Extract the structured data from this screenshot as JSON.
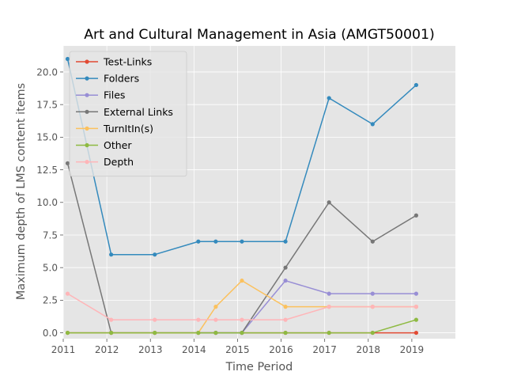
{
  "chart_data": {
    "type": "line",
    "title": "Art and Cultural Management in Asia (AMGT50001)",
    "xlabel": "Time Period",
    "ylabel": "Maximum depth of LMS content items",
    "xlim": [
      2011.0,
      2020.0
    ],
    "ylim": [
      -0.45,
      22.0
    ],
    "x_ticks": [
      2011,
      2012,
      2013,
      2014,
      2015,
      2016,
      2017,
      2018,
      2019
    ],
    "y_ticks": [
      0.0,
      2.5,
      5.0,
      7.5,
      10.0,
      12.5,
      15.0,
      17.5,
      20.0
    ],
    "y_tick_labels": [
      "0.0",
      "2.5",
      "5.0",
      "7.5",
      "10.0",
      "12.5",
      "15.0",
      "17.5",
      "20.0"
    ],
    "grid": true,
    "legend_position": "upper-left",
    "style": {
      "background": "#e5e5e5",
      "grid_color": "#ffffff",
      "text_color": "#555555"
    },
    "x": [
      2011.1,
      2012.1,
      2013.1,
      2014.1,
      2014.5,
      2015.1,
      2016.1,
      2017.1,
      2018.1,
      2019.1
    ],
    "series": [
      {
        "name": "Test-Links",
        "color": "#e24a33",
        "values": [
          0,
          0,
          0,
          0,
          0,
          0,
          0,
          0,
          0,
          0
        ]
      },
      {
        "name": "Folders",
        "color": "#348abd",
        "values": [
          21,
          6,
          6,
          7,
          7,
          7,
          7,
          18,
          16,
          19
        ]
      },
      {
        "name": "Files",
        "color": "#988ed5",
        "values": [
          0,
          0,
          0,
          0,
          0,
          0,
          4,
          3,
          3,
          3
        ]
      },
      {
        "name": "External Links",
        "color": "#777777",
        "values": [
          13,
          0,
          0,
          0,
          0,
          0,
          5,
          10,
          7,
          9
        ]
      },
      {
        "name": "TurnItIn(s)",
        "color": "#fbc15e",
        "values": [
          0,
          0,
          0,
          0,
          2,
          4,
          2,
          2,
          2,
          2
        ]
      },
      {
        "name": "Other",
        "color": "#8eba42",
        "values": [
          0,
          0,
          0,
          0,
          0,
          0,
          0,
          0,
          0,
          1
        ]
      },
      {
        "name": "Depth",
        "color": "#ffb5b8",
        "values": [
          3,
          1,
          1,
          1,
          1,
          1,
          1,
          2,
          2,
          2
        ]
      }
    ]
  }
}
